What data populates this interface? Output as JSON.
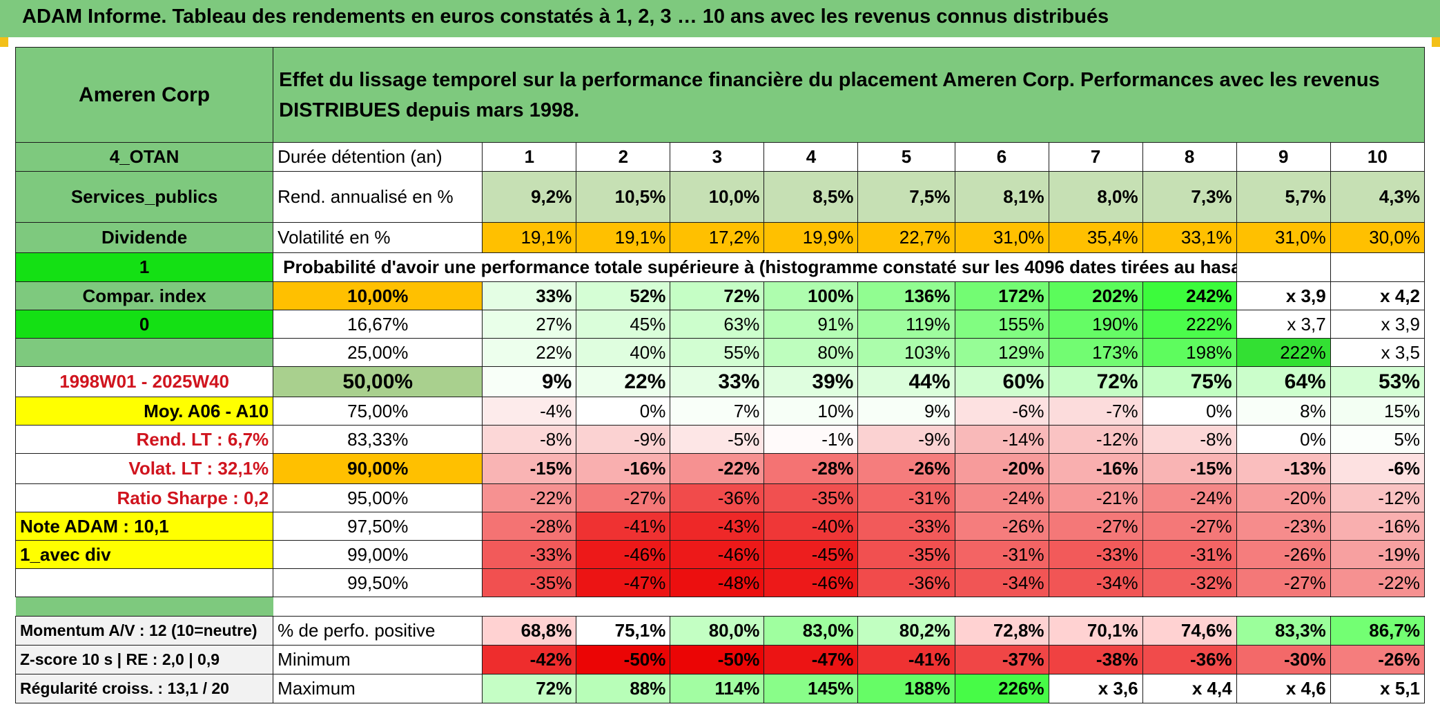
{
  "title": "ADAM Informe. Tableau des rendements en euros constatés à 1, 2, 3 … 10 ans avec les revenus connus distribués",
  "header": {
    "asset": "Ameren Corp",
    "description": "Effet du lissage temporel sur la performance financière du placement Ameren Corp. Performances avec les revenus DISTRIBUES depuis mars 1998."
  },
  "sidebar": {
    "code": "4_OTAN",
    "sector": "Services_publics",
    "type": "Dividende",
    "flag1": "1",
    "compar": "Compar. index",
    "flag2": "0",
    "period": "1998W01 - 2025W40",
    "moy": "Moy. A06 - A10",
    "rend_lt": "Rend. LT :    6,7%",
    "volat_lt": "Volat. LT :    32,1%",
    "sharpe": "Ratio Sharpe :    0,2",
    "note": "Note ADAM : 10,1",
    "avec_div": "1_avec div"
  },
  "rows_top": {
    "duration_label": "Durée détention (an)",
    "years": [
      "1",
      "2",
      "3",
      "4",
      "5",
      "6",
      "7",
      "8",
      "9",
      "10"
    ],
    "rend_label": "Rend. annualisé en %",
    "rend": [
      "9,2%",
      "10,5%",
      "10,0%",
      "8,5%",
      "7,5%",
      "8,1%",
      "8,0%",
      "7,3%",
      "5,7%",
      "4,3%"
    ],
    "vol_label": "Volatilité en %",
    "vol": [
      "19,1%",
      "19,1%",
      "17,2%",
      "19,9%",
      "22,7%",
      "31,0%",
      "35,4%",
      "33,1%",
      "31,0%",
      "30,0%"
    ],
    "prob_label": "Probabilité d'avoir une performance totale supérieure à (histogramme constaté sur les 4096 dates tirées au hasard)"
  },
  "probability_table": [
    {
      "p": "10,00%",
      "v": [
        "33%",
        "52%",
        "72%",
        "100%",
        "136%",
        "172%",
        "202%",
        "242%",
        "x 3,9",
        "x 4,2"
      ]
    },
    {
      "p": "16,67%",
      "v": [
        "27%",
        "45%",
        "63%",
        "91%",
        "119%",
        "155%",
        "190%",
        "222%",
        "x 3,7",
        "x 3,9"
      ]
    },
    {
      "p": "25,00%",
      "v": [
        "22%",
        "40%",
        "55%",
        "80%",
        "103%",
        "129%",
        "173%",
        "198%",
        "222%",
        "x 3,5"
      ]
    },
    {
      "p": "50,00%",
      "v": [
        "9%",
        "22%",
        "33%",
        "39%",
        "44%",
        "60%",
        "72%",
        "75%",
        "64%",
        "53%"
      ]
    },
    {
      "p": "75,00%",
      "v": [
        "-4%",
        "0%",
        "7%",
        "10%",
        "9%",
        "-6%",
        "-7%",
        "0%",
        "8%",
        "15%"
      ]
    },
    {
      "p": "83,33%",
      "v": [
        "-8%",
        "-9%",
        "-5%",
        "-1%",
        "-9%",
        "-14%",
        "-12%",
        "-8%",
        "0%",
        "5%"
      ]
    },
    {
      "p": "90,00%",
      "v": [
        "-15%",
        "-16%",
        "-22%",
        "-28%",
        "-26%",
        "-20%",
        "-16%",
        "-15%",
        "-13%",
        "-6%"
      ]
    },
    {
      "p": "95,00%",
      "v": [
        "-22%",
        "-27%",
        "-36%",
        "-35%",
        "-31%",
        "-24%",
        "-21%",
        "-24%",
        "-20%",
        "-12%"
      ]
    },
    {
      "p": "97,50%",
      "v": [
        "-28%",
        "-41%",
        "-43%",
        "-40%",
        "-33%",
        "-26%",
        "-27%",
        "-27%",
        "-23%",
        "-16%"
      ]
    },
    {
      "p": "99,00%",
      "v": [
        "-33%",
        "-46%",
        "-46%",
        "-45%",
        "-35%",
        "-31%",
        "-33%",
        "-31%",
        "-26%",
        "-19%"
      ]
    },
    {
      "p": "99,50%",
      "v": [
        "-35%",
        "-47%",
        "-48%",
        "-46%",
        "-36%",
        "-34%",
        "-34%",
        "-32%",
        "-27%",
        "-22%"
      ]
    }
  ],
  "stats": [
    {
      "side": "Momentum A/V : 12 (10=neutre)",
      "label": "% de perfo. positive",
      "v": [
        "68,8%",
        "75,1%",
        "80,0%",
        "83,0%",
        "80,2%",
        "72,8%",
        "70,1%",
        "74,6%",
        "83,3%",
        "86,7%"
      ]
    },
    {
      "side": "Z-score 10 s | RE : 2,0 | 0,9",
      "label": "Minimum",
      "v": [
        "-42%",
        "-50%",
        "-50%",
        "-47%",
        "-41%",
        "-37%",
        "-38%",
        "-36%",
        "-30%",
        "-26%"
      ]
    },
    {
      "side": "Régularité croiss. : 13,1 / 20",
      "label": "Maximum",
      "v": [
        "72%",
        "88%",
        "114%",
        "145%",
        "188%",
        "226%",
        "x 3,6",
        "x 4,4",
        "x 4,6",
        "x 5,1"
      ]
    }
  ],
  "colors": {
    "header_green": "#7ec97e",
    "bright_green": "#14e014",
    "orange": "#ffc000",
    "yellow": "#ffff00",
    "red_text": "#d0141e"
  }
}
